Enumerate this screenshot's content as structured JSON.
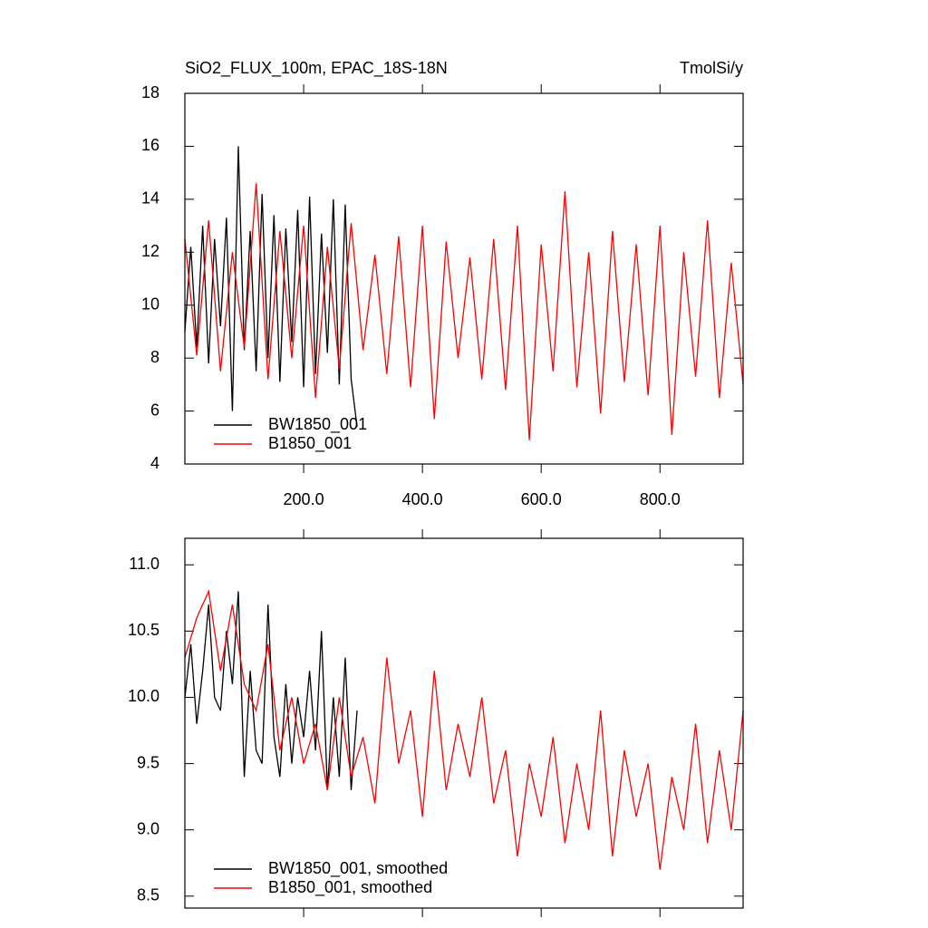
{
  "chart_data": [
    {
      "type": "line",
      "title": "SiO2_FLUX_100m, EPAC_18S-18N",
      "subtitle": "TmolSi/y",
      "xlim": [
        0,
        940
      ],
      "ylim": [
        4,
        18
      ],
      "xticks": [
        {
          "value": 200,
          "label": "200.0"
        },
        {
          "value": 400,
          "label": "400.0"
        },
        {
          "value": 600,
          "label": "600.0"
        },
        {
          "value": 800,
          "label": "800.0"
        }
      ],
      "yticks": [
        4,
        6,
        8,
        10,
        12,
        14,
        16,
        18
      ],
      "legend": "lower left",
      "series": [
        {
          "name": "BW1850_001",
          "color": "#000000",
          "x": [
            0,
            10,
            20,
            30,
            40,
            50,
            60,
            70,
            80,
            90,
            100,
            110,
            120,
            130,
            140,
            150,
            160,
            170,
            180,
            190,
            200,
            210,
            220,
            230,
            240,
            250,
            260,
            270,
            280,
            290
          ],
          "values": [
            9.0,
            12.2,
            8.4,
            13.0,
            7.8,
            12.5,
            9.2,
            13.3,
            6.0,
            16.0,
            8.3,
            12.8,
            7.5,
            14.2,
            8.0,
            13.4,
            7.1,
            12.9,
            8.6,
            13.6,
            6.9,
            14.1,
            7.4,
            12.7,
            8.2,
            14.0,
            7.0,
            13.8,
            7.2,
            5.4
          ]
        },
        {
          "name": "B1850_001",
          "color": "#ff0000",
          "x": [
            0,
            20,
            40,
            60,
            80,
            100,
            120,
            140,
            160,
            180,
            200,
            220,
            240,
            260,
            280,
            300,
            320,
            340,
            360,
            380,
            400,
            420,
            440,
            460,
            480,
            500,
            520,
            540,
            560,
            580,
            600,
            620,
            640,
            660,
            680,
            700,
            720,
            740,
            760,
            780,
            800,
            820,
            840,
            860,
            880,
            900,
            920,
            940
          ],
          "values": [
            12.5,
            8.1,
            13.2,
            7.5,
            12.0,
            8.4,
            14.6,
            7.2,
            12.8,
            8.0,
            13.0,
            6.5,
            12.2,
            7.6,
            13.1,
            8.3,
            11.9,
            7.4,
            12.6,
            6.9,
            13.0,
            5.7,
            12.4,
            8.0,
            11.8,
            7.2,
            12.5,
            6.8,
            13.0,
            4.9,
            12.3,
            7.5,
            14.3,
            6.9,
            12.0,
            5.9,
            12.8,
            7.1,
            12.3,
            6.6,
            13.0,
            5.1,
            12.0,
            7.3,
            13.2,
            6.5,
            11.6,
            7.0
          ]
        }
      ]
    },
    {
      "type": "line",
      "xlim": [
        0,
        940
      ],
      "ylim": [
        8.41,
        11.2
      ],
      "xticks": [
        200,
        400,
        600,
        800
      ],
      "yticks": [
        8.5,
        {
          "value": 9,
          "label": "9.0"
        },
        9.5,
        {
          "value": 10,
          "label": "10.0"
        },
        10.5,
        {
          "value": 11,
          "label": "11.0"
        }
      ],
      "legend": "lower left",
      "series": [
        {
          "name": "BW1850_001, smoothed",
          "color": "#000000",
          "x": [
            0,
            10,
            20,
            30,
            40,
            50,
            60,
            70,
            80,
            90,
            100,
            110,
            120,
            130,
            140,
            150,
            160,
            170,
            180,
            190,
            200,
            210,
            220,
            230,
            240,
            250,
            260,
            270,
            280,
            290
          ],
          "values": [
            10.0,
            10.4,
            9.8,
            10.2,
            10.7,
            10.0,
            9.9,
            10.5,
            10.1,
            10.8,
            9.4,
            10.2,
            9.6,
            9.5,
            10.7,
            9.7,
            9.4,
            10.1,
            9.5,
            10.0,
            9.7,
            10.2,
            9.6,
            10.5,
            9.3,
            10.0,
            9.4,
            10.3,
            9.3,
            9.9
          ]
        },
        {
          "name": "B1850_001, smoothed",
          "color": "#ff0000",
          "x": [
            0,
            20,
            40,
            60,
            80,
            100,
            120,
            140,
            160,
            180,
            200,
            220,
            240,
            260,
            280,
            300,
            320,
            340,
            360,
            380,
            400,
            420,
            440,
            460,
            480,
            500,
            520,
            540,
            560,
            580,
            600,
            620,
            640,
            660,
            680,
            700,
            720,
            740,
            760,
            780,
            800,
            820,
            840,
            860,
            880,
            900,
            920,
            940
          ],
          "values": [
            10.3,
            10.6,
            10.8,
            10.2,
            10.7,
            10.1,
            9.9,
            10.4,
            9.6,
            10.0,
            9.5,
            9.8,
            9.3,
            10.0,
            9.4,
            9.7,
            9.2,
            10.3,
            9.5,
            9.9,
            9.1,
            10.2,
            9.3,
            9.8,
            9.4,
            10.0,
            9.2,
            9.6,
            8.8,
            9.5,
            9.1,
            9.7,
            8.9,
            9.5,
            9.0,
            9.9,
            8.8,
            9.6,
            9.1,
            9.5,
            8.7,
            9.4,
            9.0,
            9.8,
            8.9,
            9.6,
            9.0,
            9.9
          ]
        }
      ]
    }
  ]
}
